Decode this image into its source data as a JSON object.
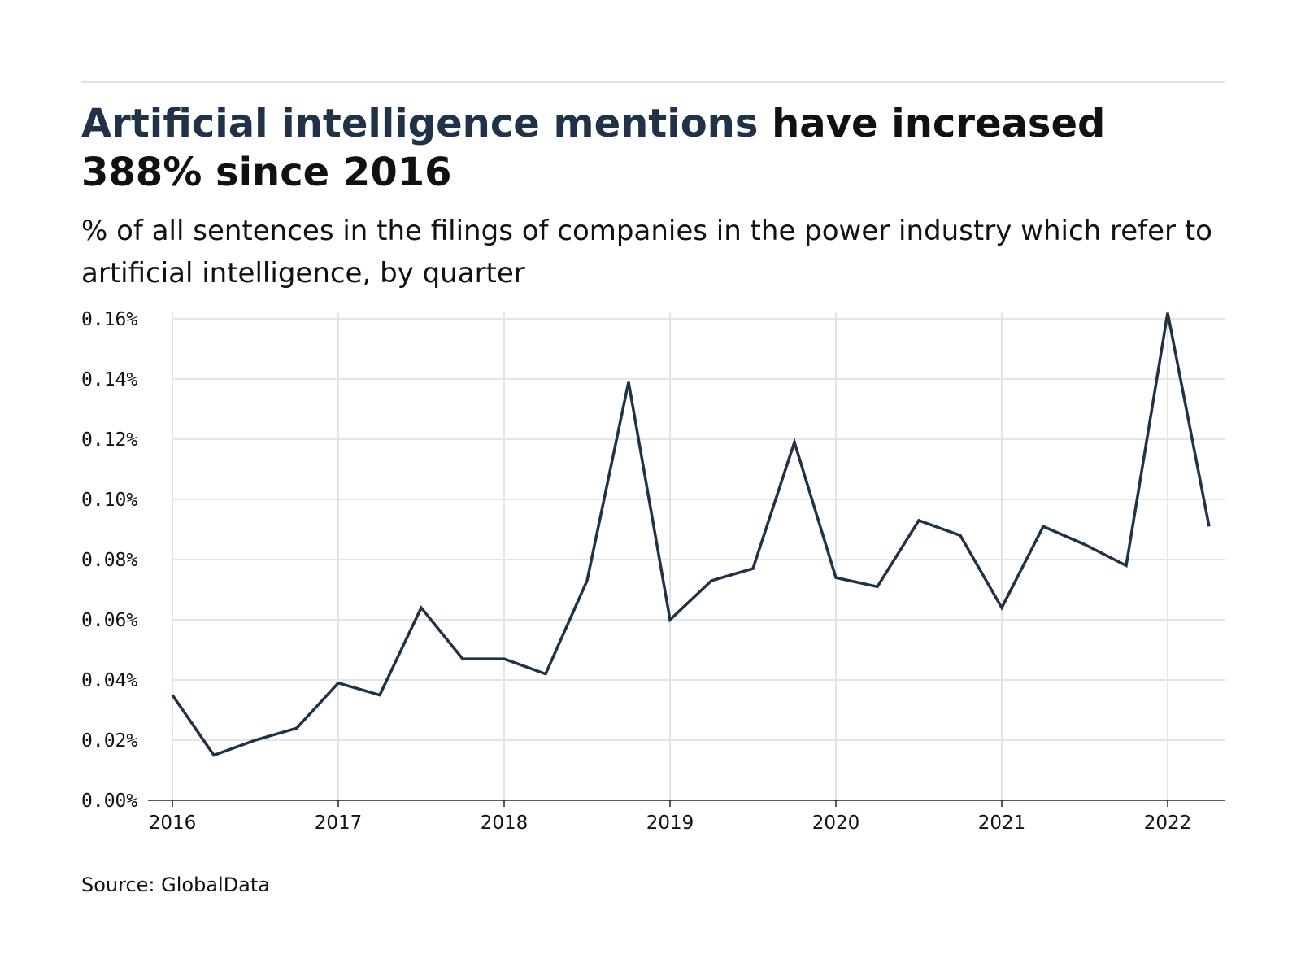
{
  "header": {
    "title_highlight": "Artificial intelligence mentions",
    "title_rest": " have increased 388% since 2016",
    "subtitle": "% of all sentences in the filings of companies in the power industry which refer to artificial intelligence, by quarter"
  },
  "footer": {
    "source": "Source: GlobalData"
  },
  "colors": {
    "line": "#1f3248",
    "title_accent": "#1f3248",
    "grid": "#e4e4e4",
    "axis": "#222222"
  },
  "chart_data": {
    "type": "line",
    "title": "Artificial intelligence mentions have increased 388% since 2016",
    "subtitle": "% of all sentences in the filings of companies in the power industry which refer to artificial intelligence, by quarter",
    "xlabel": "",
    "ylabel": "",
    "x_tick_labels": [
      "2016",
      "2017",
      "2018",
      "2019",
      "2020",
      "2021",
      "2022"
    ],
    "y_tick_labels": [
      "0.00%",
      "0.02%",
      "0.04%",
      "0.06%",
      "0.08%",
      "0.10%",
      "0.12%",
      "0.14%",
      "0.16%"
    ],
    "y_ticks": [
      0,
      0.02,
      0.04,
      0.06,
      0.08,
      0.1,
      0.12,
      0.14,
      0.16
    ],
    "xlim": [
      "2016 Q1",
      "2022 Q2"
    ],
    "ylim": [
      0,
      0.16
    ],
    "grid": true,
    "legend": "none",
    "series": [
      {
        "x": [
          "2016 Q1",
          "2016 Q2",
          "2016 Q3",
          "2016 Q4",
          "2017 Q1",
          "2017 Q2",
          "2017 Q3",
          "2017 Q4",
          "2018 Q1",
          "2018 Q2",
          "2018 Q3",
          "2018 Q4",
          "2019 Q1",
          "2019 Q2",
          "2019 Q3",
          "2019 Q4",
          "2020 Q1",
          "2020 Q2",
          "2020 Q3",
          "2020 Q4",
          "2021 Q1",
          "2021 Q2",
          "2021 Q3",
          "2021 Q4",
          "2022 Q1",
          "2022 Q2"
        ],
        "values": [
          0.035,
          0.015,
          0.02,
          0.024,
          0.039,
          0.035,
          0.064,
          0.047,
          0.047,
          0.042,
          0.073,
          0.139,
          0.06,
          0.073,
          0.077,
          0.119,
          0.074,
          0.071,
          0.093,
          0.088,
          0.064,
          0.091,
          0.085,
          0.078,
          0.162,
          0.091
        ]
      }
    ]
  }
}
